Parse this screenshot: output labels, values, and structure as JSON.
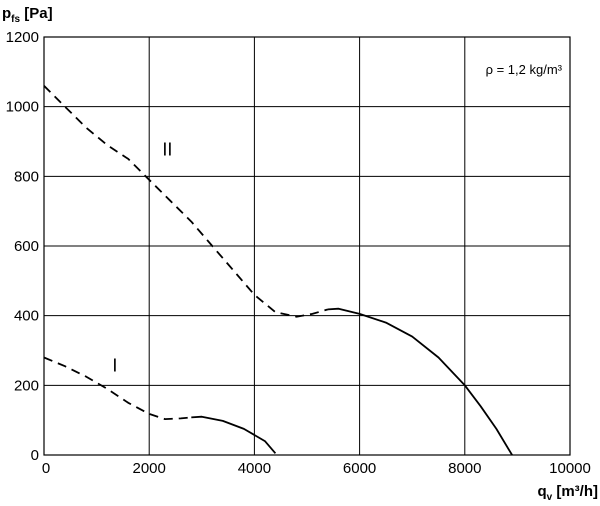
{
  "chart_data": {
    "type": "line",
    "title": "",
    "xlabel": {
      "main": "q",
      "sub": "v",
      "unit": " [m³/h]"
    },
    "ylabel": {
      "main": "p",
      "sub": "fs",
      "unit": " [Pa]"
    },
    "xlim": [
      0,
      10000
    ],
    "ylim": [
      0,
      1200
    ],
    "xticks": [
      "0",
      "2000",
      "4000",
      "6000",
      "8000",
      "10000"
    ],
    "yticks": [
      "0",
      "200",
      "400",
      "600",
      "800",
      "1000",
      "1200"
    ],
    "grid": true,
    "annotation": "ρ = 1,2 kg/m³",
    "series": [
      {
        "name": "II",
        "dashed": [
          [
            0,
            1060
          ],
          [
            400,
            1000
          ],
          [
            800,
            940
          ],
          [
            1200,
            890
          ],
          [
            1600,
            850
          ],
          [
            2000,
            790
          ],
          [
            2400,
            730
          ],
          [
            2800,
            670
          ],
          [
            3200,
            600
          ],
          [
            3600,
            530
          ],
          [
            4000,
            460
          ],
          [
            4400,
            410
          ],
          [
            4800,
            397
          ],
          [
            5100,
            405
          ],
          [
            5400,
            418
          ]
        ],
        "solid": [
          [
            5400,
            418
          ],
          [
            5600,
            420
          ],
          [
            6000,
            405
          ],
          [
            6500,
            380
          ],
          [
            7000,
            340
          ],
          [
            7500,
            280
          ],
          [
            8000,
            200
          ],
          [
            8300,
            140
          ],
          [
            8600,
            75
          ],
          [
            8900,
            0
          ]
        ]
      },
      {
        "name": "I",
        "dashed": [
          [
            0,
            280
          ],
          [
            400,
            255
          ],
          [
            800,
            225
          ],
          [
            1200,
            190
          ],
          [
            1600,
            150
          ],
          [
            2000,
            118
          ],
          [
            2300,
            103
          ],
          [
            2600,
            105
          ],
          [
            2800,
            108
          ]
        ],
        "solid": [
          [
            2800,
            108
          ],
          [
            3000,
            110
          ],
          [
            3400,
            98
          ],
          [
            3800,
            75
          ],
          [
            4200,
            40
          ],
          [
            4400,
            5
          ]
        ]
      }
    ]
  }
}
